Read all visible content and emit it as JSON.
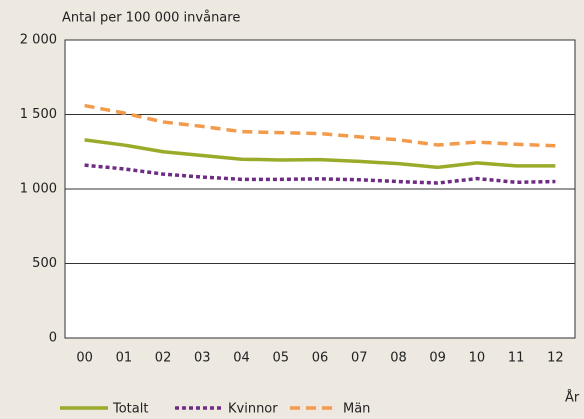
{
  "chart_data": {
    "type": "line",
    "y_label": "Antal per 100 000 invånare",
    "x_label": "År",
    "categories": [
      "00",
      "01",
      "02",
      "03",
      "04",
      "05",
      "06",
      "07",
      "08",
      "09",
      "10",
      "11",
      "12"
    ],
    "series": [
      {
        "name": "Totalt",
        "color": "#9aab2a",
        "style": "solid",
        "values": [
          1330,
          1295,
          1250,
          1225,
          1200,
          1195,
          1197,
          1185,
          1170,
          1145,
          1175,
          1155,
          1155
        ]
      },
      {
        "name": "Kvinnor",
        "color": "#6e2d82",
        "style": "dotted",
        "values": [
          1160,
          1135,
          1100,
          1080,
          1065,
          1065,
          1068,
          1062,
          1050,
          1040,
          1070,
          1045,
          1050
        ]
      },
      {
        "name": "Män",
        "color": "#f39a4b",
        "style": "dashed",
        "values": [
          1560,
          1510,
          1450,
          1420,
          1385,
          1378,
          1372,
          1350,
          1330,
          1295,
          1315,
          1300,
          1290
        ]
      }
    ],
    "ylim": [
      0,
      2000
    ],
    "yticks": [
      0,
      500,
      {
        "value": 1000,
        "label": "1 000"
      },
      {
        "value": 1500,
        "label": "1 500"
      },
      {
        "value": 2000,
        "label": "2 000"
      }
    ],
    "grid": true,
    "legend": "bottom"
  }
}
